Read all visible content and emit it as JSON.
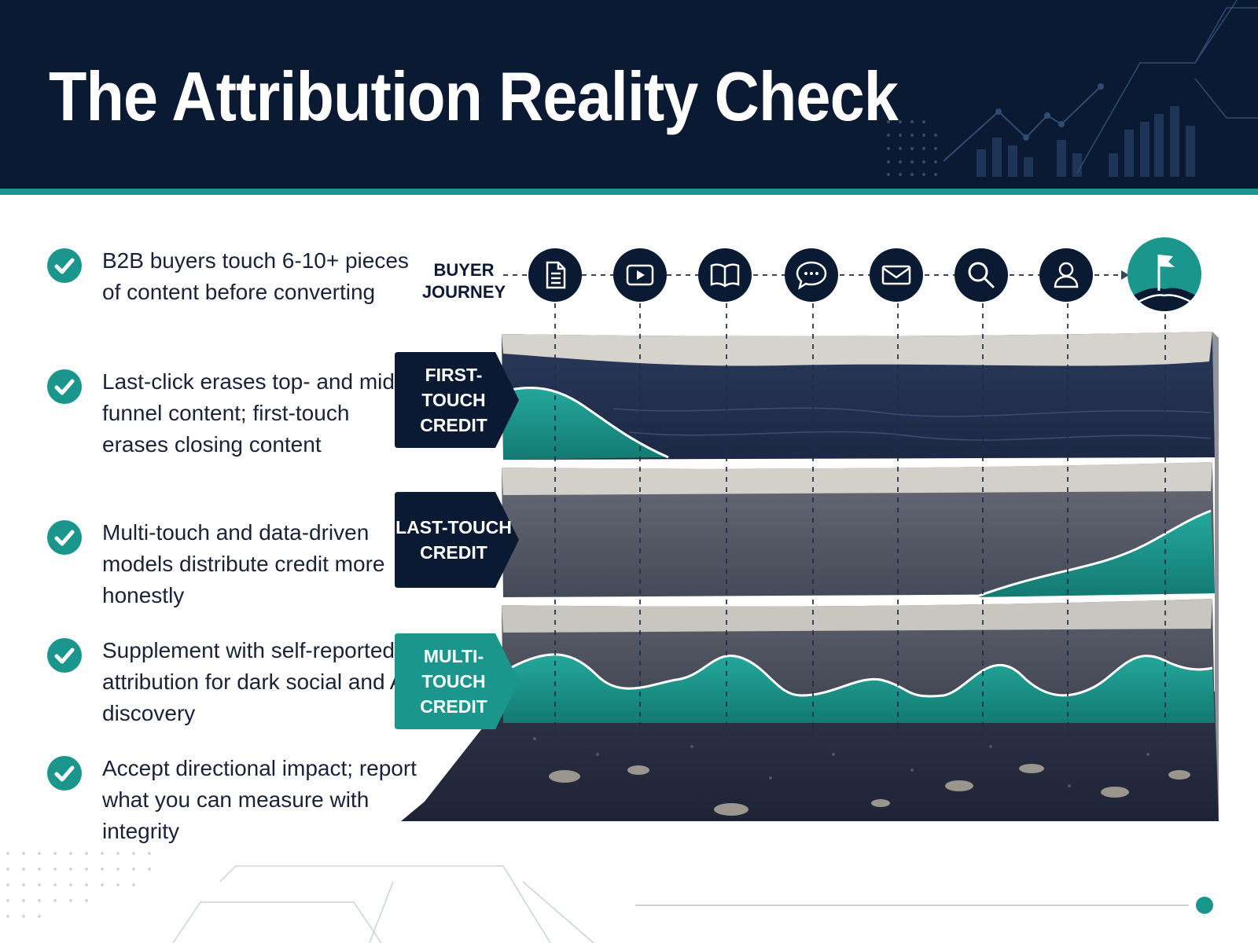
{
  "title": "The Attribution Reality Check",
  "colors": {
    "navy": "#0b1a33",
    "teal": "#1a968d",
    "text": "#1a2238"
  },
  "bullets": [
    {
      "icon": "check-icon",
      "text": "B2B buyers touch 6-10+ pieces of content before converting"
    },
    {
      "icon": "check-icon",
      "text": "Last-click erases top- and mid-funnel content; first-touch erases closing content"
    },
    {
      "icon": "check-icon",
      "text": "Multi-touch and data-driven models distribute credit more honestly"
    },
    {
      "icon": "check-icon",
      "text": "Supplement with self-reported attribution for dark social and AI discovery"
    },
    {
      "icon": "check-icon",
      "text": "Accept directional impact; report what you can measure with integrity"
    }
  ],
  "journey": {
    "label_line1": "BUYER",
    "label_line2": "JOURNEY",
    "touchpoints": [
      "document-icon",
      "video-play-icon",
      "book-icon",
      "chat-bubble-icon",
      "envelope-icon",
      "search-icon",
      "user-icon"
    ],
    "goal": "flag-icon"
  },
  "credit_layers": [
    {
      "line1": "FIRST-TOUCH",
      "line2": "CREDIT"
    },
    {
      "line1": "LAST-TOUCH",
      "line2": "CREDIT"
    },
    {
      "line1": "MULTI-TOUCH",
      "line2": "CREDIT"
    }
  ]
}
